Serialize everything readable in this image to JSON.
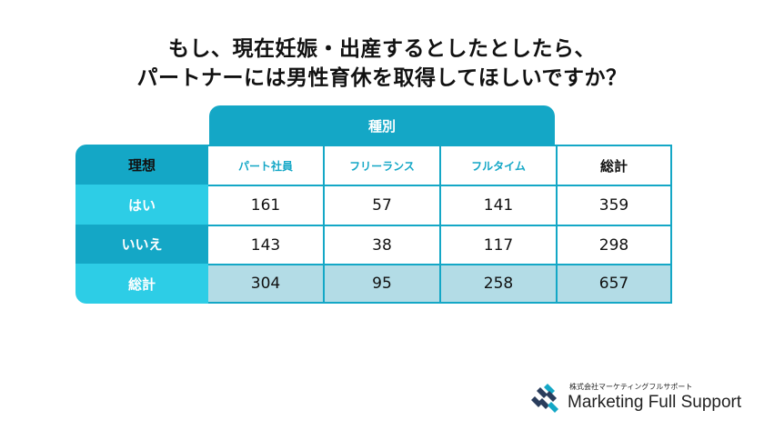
{
  "title": {
    "line1": "もし、現在妊娠・出産するとしたとしたら、",
    "line2": "パートナーには男性育休を取得してほしいですか？"
  },
  "table": {
    "category_label": "種別",
    "corner_label": "理想",
    "columns": [
      "パート社員",
      "フリーランス",
      "フルタイム",
      "総計"
    ],
    "rows": [
      {
        "label": "はい",
        "values": [
          "161",
          "57",
          "141",
          "359"
        ]
      },
      {
        "label": "いいえ",
        "values": [
          "143",
          "38",
          "117",
          "298"
        ]
      },
      {
        "label": "総計",
        "values": [
          "304",
          "95",
          "258",
          "657"
        ]
      }
    ]
  },
  "logo": {
    "company": "株式会社マーケティングフルサポート",
    "brand": "Marketing Full Support"
  },
  "colors": {
    "primary": "#14a7c6",
    "light": "#2dcde6",
    "total_fill": "#b3dce6"
  }
}
